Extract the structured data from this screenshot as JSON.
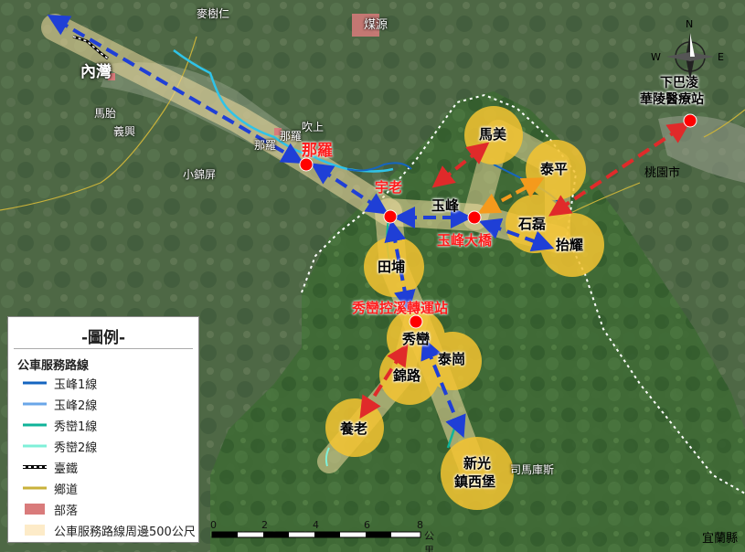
{
  "legend": {
    "title": "-圖例-",
    "subtitle": "公車服務路線",
    "items": [
      {
        "label": "玉峰1線",
        "symbol": "line",
        "color": "#1565c0"
      },
      {
        "label": "玉峰2線",
        "symbol": "line",
        "color": "#6aa6e8"
      },
      {
        "label": "秀巒1線",
        "symbol": "line",
        "color": "#10b39a"
      },
      {
        "label": "秀巒2線",
        "symbol": "line",
        "color": "#7ff0d8"
      },
      {
        "label": "臺鐵",
        "symbol": "rail",
        "color": "#000000"
      },
      {
        "label": "鄉道",
        "symbol": "line",
        "color": "#c9b23a"
      },
      {
        "label": "部落",
        "symbol": "box",
        "color": "#d97b7b"
      },
      {
        "label": "公車服務路線周邊500公尺",
        "symbol": "box",
        "color": "#fdebc8"
      }
    ]
  },
  "scale": {
    "ticks": [
      "0",
      "2",
      "4",
      "6",
      "8"
    ],
    "unit": "公里"
  },
  "compass": {
    "n": "N",
    "e": "E",
    "w": "W"
  },
  "places": {
    "neiwan": "內灣",
    "maiya": "馬胎",
    "yixing": "義興",
    "xiaojinping": "小錦屏",
    "nalo_small": "那羅",
    "nalo_small2": "那羅",
    "chuishang": "吹上",
    "maishuren": "麥樹仁",
    "meiyuan": "煤源",
    "yufeng": "玉峰",
    "shilei": "石磊",
    "taoyuan_city": "桃園市",
    "yilan_county": "宜蘭縣",
    "simakusi": "司馬庫斯"
  },
  "stops": {
    "nalo": "那羅",
    "yulao": "宇老",
    "yufeng_bridge": "玉峰大橋",
    "xiuluan_transfer": "秀巒控溪轉運站",
    "xiabalin": "下巴淩",
    "hualing_clinic": "華陵醫療站"
  },
  "stations": {
    "mamei": "馬美",
    "taiping": "泰平",
    "taiyao": "抬耀",
    "tianpu": "田埔",
    "xiuluan": "秀巒",
    "taigang": "泰崗",
    "jinlu": "錦路",
    "yanglao": "養老",
    "xinguang": "新光",
    "zhenxipu": "鎮西堡"
  },
  "colors": {
    "blue_arrow": "#1f3fd6",
    "red_arrow": "#e02a2a",
    "orange_arrow": "#f59a1c",
    "station_fill": "#f5c431",
    "stop_dot": "#ff0000",
    "buffer": "#f2dca0"
  }
}
